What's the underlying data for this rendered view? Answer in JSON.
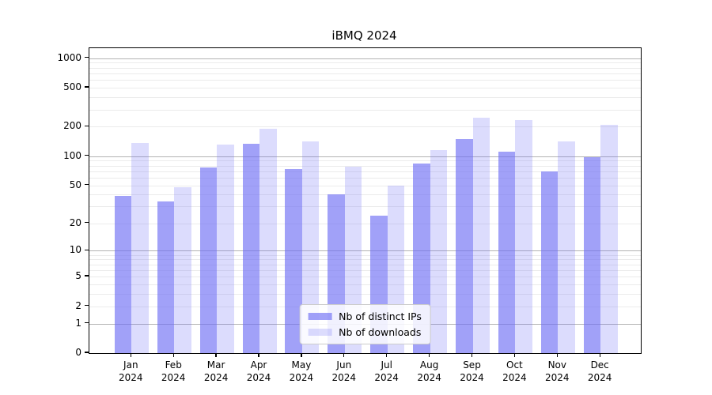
{
  "chart_data": {
    "type": "bar",
    "title": "iBMQ 2024",
    "xlabel": "",
    "ylabel": "",
    "yscale": "log10(1+x)",
    "ytick_values": [
      0,
      1,
      2,
      5,
      10,
      20,
      50,
      100,
      200,
      500,
      1000
    ],
    "ylim": [
      0,
      1266
    ],
    "grid": "on",
    "legend_position": "lower center",
    "categories": [
      "Jan",
      "Feb",
      "Mar",
      "Apr",
      "May",
      "Jun",
      "Jul",
      "Aug",
      "Sep",
      "Oct",
      "Nov",
      "Dec"
    ],
    "category_year": "2024",
    "series": [
      {
        "name": "Nb of distinct IPs",
        "color": "rgba(110,110,245,0.65)",
        "values": [
          39,
          34,
          77,
          135,
          74,
          40,
          24,
          84,
          151,
          111,
          70,
          97
        ]
      },
      {
        "name": "Nb of downloads",
        "color": "rgba(110,110,245,0.24)",
        "values": [
          136,
          48,
          132,
          192,
          141,
          78,
          50,
          115,
          249,
          236,
          141,
          208
        ]
      }
    ]
  }
}
